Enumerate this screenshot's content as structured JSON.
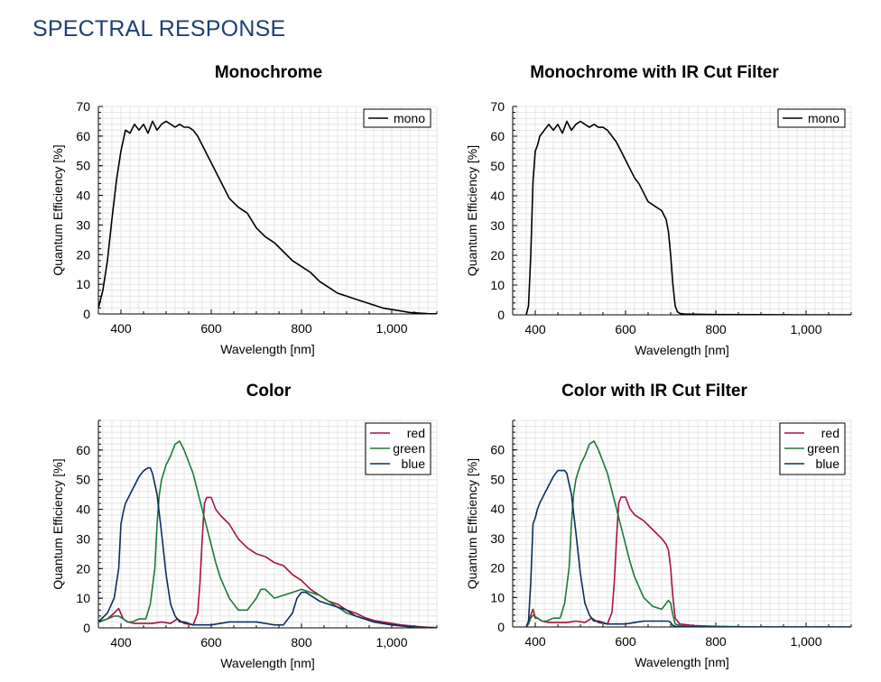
{
  "page": {
    "title": "SPECTRAL RESPONSE"
  },
  "chart_data": [
    {
      "type": "line",
      "title": "Monochrome",
      "xlabel": "Wavelength [nm]",
      "ylabel": "Quantum Efficiency [%]",
      "xlim": [
        350,
        1100
      ],
      "ylim": [
        0,
        70
      ],
      "xticks": [
        400,
        600,
        800,
        1000
      ],
      "xtick_labels": [
        "400",
        "600",
        "800",
        "1,000"
      ],
      "yticks": [
        0,
        10,
        20,
        30,
        40,
        50,
        60,
        70
      ],
      "ytick_labels": [
        "0",
        "10",
        "20",
        "30",
        "40",
        "50",
        "60",
        "70"
      ],
      "grid": true,
      "legend": "top-right",
      "series": [
        {
          "name": "mono",
          "color": "#000000",
          "x": [
            350,
            360,
            370,
            380,
            390,
            400,
            410,
            420,
            430,
            440,
            450,
            460,
            470,
            480,
            490,
            500,
            510,
            520,
            530,
            540,
            550,
            560,
            570,
            580,
            590,
            600,
            620,
            640,
            660,
            680,
            700,
            720,
            740,
            760,
            780,
            800,
            820,
            840,
            860,
            880,
            900,
            920,
            940,
            960,
            980,
            1000,
            1020,
            1040,
            1060,
            1080,
            1100
          ],
          "y": [
            2,
            8,
            18,
            32,
            45,
            55,
            62,
            61,
            64,
            62,
            64,
            61,
            65,
            62,
            64,
            65,
            64,
            63,
            64,
            63,
            63,
            62,
            60,
            57,
            54,
            51,
            45,
            39,
            36,
            34,
            29,
            26,
            24,
            21,
            18,
            16,
            14,
            11,
            9,
            7,
            6,
            5,
            4,
            3,
            2,
            1.5,
            1,
            0.5,
            0.3,
            0.1,
            0.05
          ]
        }
      ]
    },
    {
      "type": "line",
      "title": "Monochrome with IR Cut Filter",
      "xlabel": "Wavelength [nm]",
      "ylabel": "Quantum Efficiency [%]",
      "xlim": [
        350,
        1100
      ],
      "ylim": [
        0,
        70
      ],
      "xticks": [
        400,
        600,
        800,
        1000
      ],
      "xtick_labels": [
        "400",
        "600",
        "800",
        "1,000"
      ],
      "yticks": [
        0,
        10,
        20,
        30,
        40,
        50,
        60,
        70
      ],
      "ytick_labels": [
        "0",
        "10",
        "20",
        "30",
        "40",
        "50",
        "60",
        "70"
      ],
      "grid": true,
      "legend": "top-right",
      "series": [
        {
          "name": "mono",
          "color": "#000000",
          "x": [
            380,
            385,
            390,
            395,
            400,
            405,
            410,
            420,
            430,
            440,
            450,
            460,
            470,
            480,
            490,
            500,
            510,
            520,
            530,
            540,
            550,
            560,
            570,
            580,
            590,
            600,
            610,
            620,
            630,
            640,
            650,
            660,
            670,
            680,
            690,
            695,
            700,
            705,
            710,
            715,
            720,
            730,
            750,
            800,
            900,
            1000,
            1100
          ],
          "y": [
            0,
            3,
            20,
            45,
            55,
            57,
            60,
            62,
            64,
            62,
            64,
            61,
            65,
            62,
            64,
            65,
            64,
            63,
            64,
            63,
            63,
            62,
            60,
            58,
            55,
            52,
            49,
            46,
            44,
            41,
            38,
            37,
            36,
            35,
            32,
            28,
            20,
            10,
            3,
            1,
            0.5,
            0.3,
            0.2,
            0.1,
            0.05,
            0,
            0
          ]
        }
      ]
    },
    {
      "type": "line",
      "title": "Color",
      "xlabel": "Wavelength [nm]",
      "ylabel": "Quantum Efficiency [%]",
      "xlim": [
        350,
        1100
      ],
      "ylim": [
        0,
        70
      ],
      "xticks": [
        400,
        600,
        800,
        1000
      ],
      "xtick_labels": [
        "400",
        "600",
        "800",
        "1,000"
      ],
      "yticks": [
        0,
        10,
        20,
        30,
        40,
        50,
        60
      ],
      "ytick_labels": [
        "0",
        "10",
        "20",
        "30",
        "40",
        "50",
        "60"
      ],
      "grid": true,
      "legend": "top-right",
      "series": [
        {
          "name": "red",
          "color": "#a8123e",
          "x": [
            350,
            370,
            385,
            395,
            405,
            415,
            430,
            450,
            470,
            490,
            510,
            525,
            540,
            560,
            570,
            575,
            580,
            585,
            590,
            600,
            610,
            620,
            640,
            660,
            680,
            700,
            720,
            740,
            760,
            780,
            800,
            820,
            840,
            860,
            880,
            900,
            920,
            940,
            960,
            980,
            1000,
            1020,
            1040,
            1060,
            1080,
            1100
          ],
          "y": [
            2,
            3,
            5,
            6.5,
            3,
            2,
            1.5,
            1.5,
            1.5,
            2,
            1.5,
            3,
            1.5,
            1,
            5,
            15,
            30,
            42,
            44,
            44,
            40,
            38,
            35,
            30,
            27,
            25,
            24,
            22,
            21,
            18,
            16,
            13,
            11,
            9,
            8,
            6,
            5,
            3.5,
            2.5,
            2,
            1.5,
            1,
            0.7,
            0.4,
            0.2,
            0.1
          ]
        },
        {
          "name": "green",
          "color": "#1a7a38",
          "x": [
            350,
            370,
            385,
            395,
            405,
            415,
            425,
            440,
            455,
            465,
            475,
            480,
            485,
            490,
            500,
            510,
            520,
            530,
            540,
            550,
            560,
            570,
            580,
            590,
            600,
            610,
            620,
            640,
            660,
            680,
            700,
            710,
            720,
            740,
            760,
            780,
            800,
            820,
            840,
            860,
            880,
            900,
            920,
            940,
            960,
            980,
            1000,
            1020,
            1040,
            1060,
            1080,
            1100
          ],
          "y": [
            2,
            3,
            4,
            4,
            3,
            2,
            2,
            3,
            3,
            8,
            20,
            35,
            45,
            50,
            55,
            58,
            62,
            63,
            60,
            56,
            52,
            46,
            40,
            34,
            28,
            22,
            17,
            10,
            6,
            6,
            10,
            13,
            13,
            10,
            11,
            12,
            13,
            12,
            11,
            9,
            7,
            5,
            4,
            3,
            2,
            1.5,
            1,
            0.7,
            0.4,
            0.2,
            0.1,
            0.05
          ]
        },
        {
          "name": "blue",
          "color": "#0a2f5c",
          "x": [
            350,
            370,
            385,
            395,
            400,
            405,
            410,
            420,
            430,
            440,
            450,
            460,
            465,
            470,
            480,
            490,
            500,
            510,
            520,
            530,
            540,
            550,
            560,
            580,
            600,
            620,
            640,
            660,
            680,
            700,
            720,
            740,
            760,
            780,
            790,
            800,
            810,
            820,
            830,
            840,
            860,
            880,
            900,
            920,
            940,
            960,
            980,
            1000,
            1020,
            1040,
            1060,
            1080,
            1100
          ],
          "y": [
            2,
            5,
            10,
            20,
            35,
            39,
            42,
            45,
            48,
            51,
            53,
            54,
            54,
            52,
            45,
            32,
            18,
            8,
            4,
            2,
            2,
            1.5,
            1,
            1,
            1,
            1.5,
            2,
            2,
            2,
            2,
            1.5,
            1,
            1,
            5,
            10,
            12,
            12,
            11,
            10,
            9,
            8,
            7,
            6,
            4,
            3,
            2,
            1.5,
            1,
            0.7,
            0.4,
            0.2,
            0.1,
            0.05
          ]
        }
      ]
    },
    {
      "type": "line",
      "title": "Color with IR Cut Filter",
      "xlabel": "Wavelength [nm]",
      "ylabel": "Quantum Efficiency [%]",
      "xlim": [
        350,
        1100
      ],
      "ylim": [
        0,
        70
      ],
      "xticks": [
        400,
        600,
        800,
        1000
      ],
      "xtick_labels": [
        "400",
        "600",
        "800",
        "1,000"
      ],
      "yticks": [
        0,
        10,
        20,
        30,
        40,
        50,
        60
      ],
      "ytick_labels": [
        "0",
        "10",
        "20",
        "30",
        "40",
        "50",
        "60"
      ],
      "grid": true,
      "legend": "top-right",
      "series": [
        {
          "name": "red",
          "color": "#a8123e",
          "x": [
            380,
            385,
            390,
            395,
            400,
            405,
            415,
            430,
            450,
            470,
            490,
            510,
            525,
            540,
            560,
            570,
            575,
            580,
            585,
            590,
            600,
            610,
            620,
            640,
            660,
            680,
            690,
            695,
            700,
            705,
            710,
            720,
            750,
            800,
            900,
            1100
          ],
          "y": [
            0,
            1,
            4,
            6,
            3,
            3,
            2,
            1.5,
            1.5,
            1.5,
            2,
            1.5,
            3,
            1.5,
            1,
            5,
            15,
            30,
            42,
            44,
            44,
            40,
            38,
            36,
            33,
            30,
            28,
            26,
            20,
            10,
            3,
            1,
            0.5,
            0.2,
            0,
            0
          ]
        },
        {
          "name": "green",
          "color": "#1a7a38",
          "x": [
            380,
            385,
            390,
            395,
            405,
            415,
            425,
            440,
            455,
            465,
            475,
            480,
            485,
            490,
            500,
            510,
            520,
            530,
            540,
            550,
            560,
            570,
            580,
            590,
            600,
            610,
            620,
            640,
            660,
            680,
            690,
            695,
            700,
            705,
            710,
            720,
            750,
            800,
            900,
            1100
          ],
          "y": [
            0,
            1,
            3,
            4,
            3,
            2,
            2,
            3,
            3,
            8,
            20,
            35,
            45,
            50,
            55,
            58,
            62,
            63,
            60,
            56,
            52,
            46,
            40,
            34,
            28,
            22,
            17,
            10,
            7,
            6,
            8,
            9,
            8,
            4,
            1,
            0.5,
            0.2,
            0.1,
            0,
            0
          ]
        },
        {
          "name": "blue",
          "color": "#0a2f5c",
          "x": [
            380,
            385,
            390,
            395,
            400,
            405,
            410,
            420,
            430,
            440,
            450,
            460,
            465,
            470,
            480,
            490,
            500,
            510,
            520,
            530,
            540,
            550,
            560,
            580,
            600,
            620,
            640,
            660,
            680,
            690,
            695,
            700,
            705,
            710,
            720,
            750,
            800,
            900,
            1100
          ],
          "y": [
            0,
            2,
            15,
            35,
            37,
            40,
            42,
            45,
            48,
            51,
            53,
            53,
            53,
            52,
            45,
            32,
            18,
            8,
            4,
            2,
            2,
            1.5,
            1,
            1,
            1,
            1.5,
            2,
            2,
            2,
            2,
            2,
            1.5,
            0.5,
            0.2,
            0.1,
            0.05,
            0,
            0,
            0
          ]
        }
      ]
    }
  ]
}
